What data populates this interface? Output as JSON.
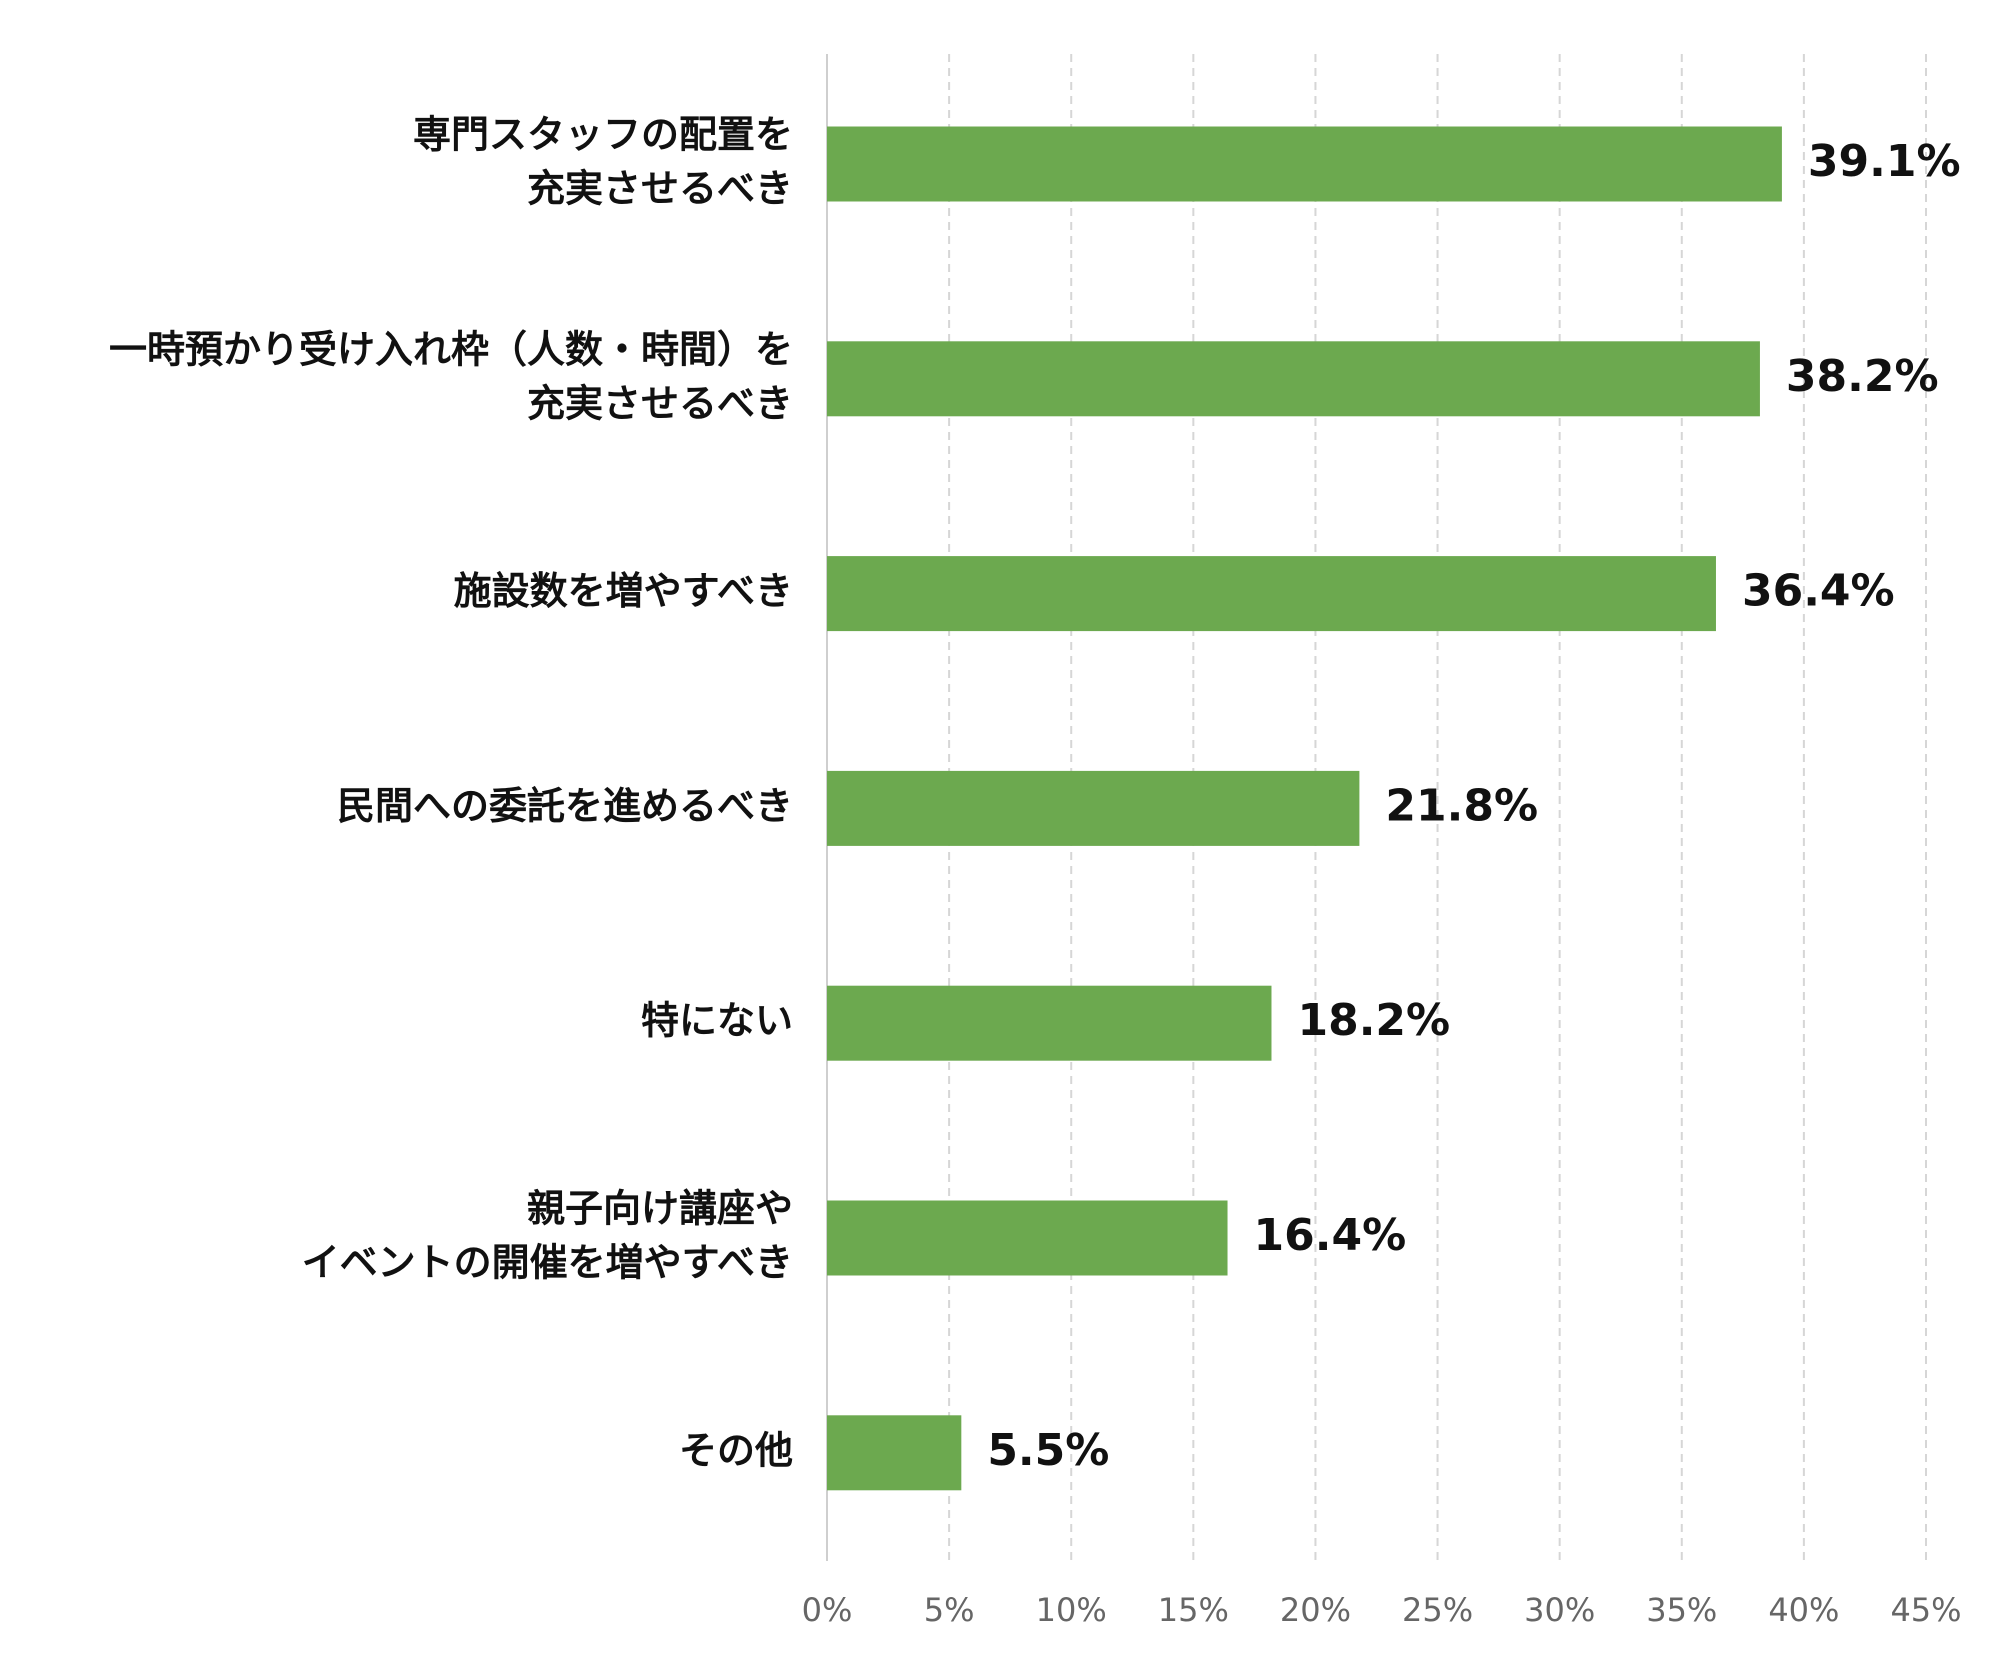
{
  "chart_data": {
    "type": "barh",
    "categories": [
      [
        "専門スタッフの配置を",
        "充実させるべき"
      ],
      [
        "一時預かり受け入れ枠（人数・時間）を",
        "充実させるべき"
      ],
      [
        "施設数を増やすべき"
      ],
      [
        "民間への委託を進めるべき"
      ],
      [
        "特にない"
      ],
      [
        "親子向け講座や",
        "イベントの開催を増やすべき"
      ],
      [
        "その他"
      ]
    ],
    "values": [
      39.1,
      38.2,
      36.4,
      21.8,
      18.2,
      16.4,
      5.5
    ],
    "value_labels": [
      "39.1%",
      "38.2%",
      "36.4%",
      "21.8%",
      "18.2%",
      "16.4%",
      "5.5%"
    ],
    "color": "#6ca94f",
    "xlim": [
      0,
      45
    ],
    "xticks": [
      {
        "value": 0,
        "label": "0%"
      },
      {
        "value": 5,
        "label": "5%"
      },
      {
        "value": 10,
        "label": "10%"
      },
      {
        "value": 15,
        "label": "15%"
      },
      {
        "value": 20,
        "label": "20%"
      },
      {
        "value": 25,
        "label": "25%"
      },
      {
        "value": 30,
        "label": "30%"
      },
      {
        "value": 35,
        "label": "35%"
      },
      {
        "value": 40,
        "label": "40%"
      },
      {
        "value": 45,
        "label": "45%"
      }
    ],
    "grid": true
  }
}
